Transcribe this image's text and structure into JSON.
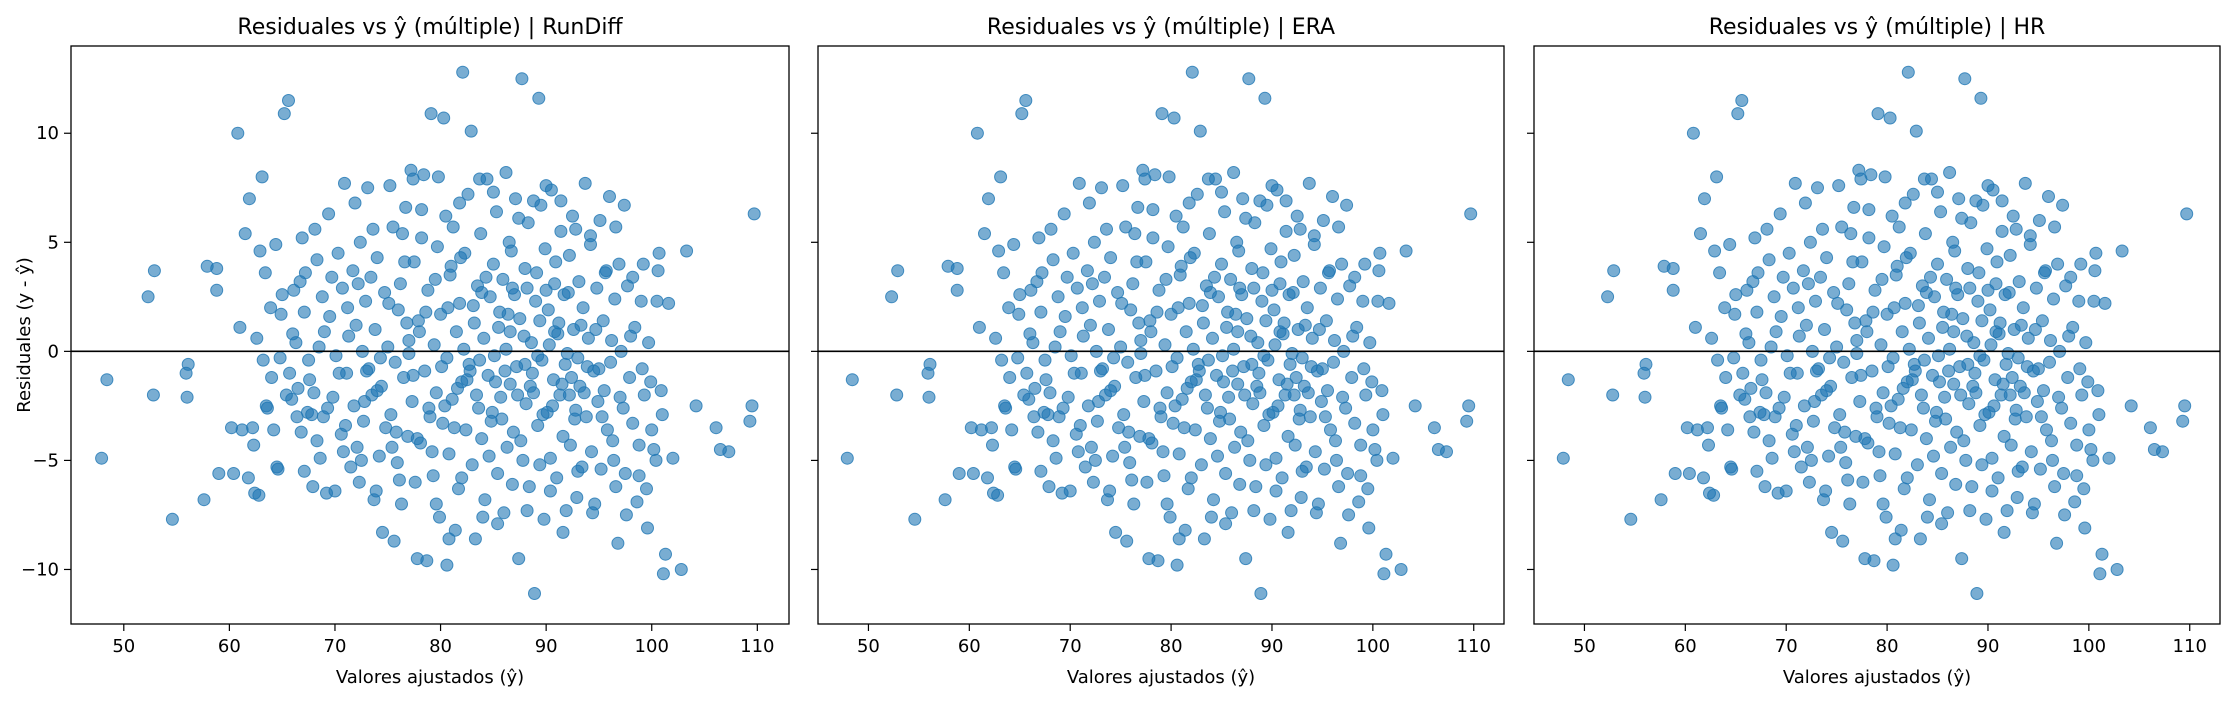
{
  "chart_data": [
    {
      "type": "scatter",
      "title": "Residuales vs ŷ (múltiple) | RunDiff",
      "xlabel": "Valores ajustados (ŷ)",
      "ylabel": "Residuales (y - ŷ)",
      "xlim": [
        45,
        113
      ],
      "ylim": [
        -12.5,
        14
      ],
      "xticks": [
        50,
        60,
        70,
        80,
        90,
        100,
        110
      ],
      "yticks": [
        -10,
        -5,
        0,
        5,
        10
      ],
      "reference_line_y": 0,
      "grid": false,
      "point_color": "#1f77b4",
      "line_color": "#000000",
      "point_alpha": 0.6,
      "show_ylabel": true,
      "show_yticklabels": true,
      "points_ref": "shared_points"
    },
    {
      "type": "scatter",
      "title": "Residuales vs ŷ (múltiple) | ERA",
      "xlabel": "Valores ajustados (ŷ)",
      "ylabel": "",
      "xlim": [
        45,
        113
      ],
      "ylim": [
        -12.5,
        14
      ],
      "xticks": [
        50,
        60,
        70,
        80,
        90,
        100,
        110
      ],
      "yticks": [
        -10,
        -5,
        0,
        5,
        10
      ],
      "reference_line_y": 0,
      "grid": false,
      "point_color": "#1f77b4",
      "line_color": "#000000",
      "point_alpha": 0.6,
      "show_ylabel": false,
      "show_yticklabels": false,
      "points_ref": "shared_points"
    },
    {
      "type": "scatter",
      "title": "Residuales vs ŷ (múltiple) | HR",
      "xlabel": "Valores ajustados (ŷ)",
      "ylabel": "",
      "xlim": [
        45,
        113
      ],
      "ylim": [
        -12.5,
        14
      ],
      "xticks": [
        50,
        60,
        70,
        80,
        90,
        100,
        110
      ],
      "yticks": [
        -10,
        -5,
        0,
        5,
        10
      ],
      "reference_line_y": 0,
      "grid": false,
      "point_color": "#1f77b4",
      "line_color": "#000000",
      "point_alpha": 0.6,
      "show_ylabel": false,
      "show_yticklabels": false,
      "points_ref": "shared_points"
    }
  ],
  "shared_points": [
    [
      47.9,
      -4.9
    ],
    [
      48.4,
      -1.3
    ],
    [
      52.3,
      2.5
    ],
    [
      52.9,
      3.7
    ],
    [
      52.8,
      -2.0
    ],
    [
      54.6,
      -7.7
    ],
    [
      55.9,
      -1.0
    ],
    [
      56.0,
      -2.1
    ],
    [
      56.1,
      -0.6
    ],
    [
      57.6,
      -6.8
    ],
    [
      57.9,
      3.9
    ],
    [
      58.8,
      3.8
    ],
    [
      58.8,
      2.8
    ],
    [
      60.4,
      -5.6
    ],
    [
      60.8,
      10.0
    ],
    [
      61.0,
      1.1
    ],
    [
      61.2,
      -3.6
    ],
    [
      61.5,
      5.4
    ],
    [
      61.8,
      -5.8
    ],
    [
      61.9,
      7.0
    ],
    [
      62.2,
      -3.5
    ],
    [
      62.3,
      -4.3
    ],
    [
      62.6,
      0.6
    ],
    [
      62.8,
      -6.6
    ],
    [
      62.9,
      4.6
    ],
    [
      63.1,
      8.0
    ],
    [
      63.4,
      3.6
    ],
    [
      63.5,
      -2.5
    ],
    [
      63.6,
      -2.6
    ],
    [
      63.9,
      2.0
    ],
    [
      64.2,
      -3.6
    ],
    [
      64.4,
      4.9
    ],
    [
      64.5,
      -5.3
    ],
    [
      64.6,
      -5.4
    ],
    [
      64.8,
      -0.3
    ],
    [
      64.9,
      1.7
    ],
    [
      65.0,
      2.6
    ],
    [
      65.2,
      10.9
    ],
    [
      65.6,
      11.5
    ],
    [
      65.7,
      -1.0
    ],
    [
      65.9,
      -2.2
    ],
    [
      66.1,
      2.8
    ],
    [
      66.3,
      0.4
    ],
    [
      66.5,
      -1.7
    ],
    [
      66.7,
      3.2
    ],
    [
      66.8,
      -3.7
    ],
    [
      66.9,
      5.2
    ],
    [
      67.1,
      -5.5
    ],
    [
      67.1,
      1.8
    ],
    [
      67.4,
      -2.8
    ],
    [
      67.6,
      -1.3
    ],
    [
      67.8,
      -2.9
    ],
    [
      67.9,
      -6.2
    ],
    [
      68.1,
      5.6
    ],
    [
      68.3,
      4.2
    ],
    [
      68.3,
      -4.1
    ],
    [
      68.6,
      -4.9
    ],
    [
      68.8,
      2.5
    ],
    [
      68.9,
      -3.0
    ],
    [
      69.0,
      0.9
    ],
    [
      69.2,
      -6.5
    ],
    [
      69.4,
      6.3
    ],
    [
      69.5,
      1.6
    ],
    [
      69.8,
      -2.1
    ],
    [
      70.0,
      -6.4
    ],
    [
      70.1,
      -0.2
    ],
    [
      70.3,
      4.5
    ],
    [
      70.6,
      -3.8
    ],
    [
      70.7,
      2.9
    ],
    [
      70.9,
      7.7
    ],
    [
      71.1,
      -1.0
    ],
    [
      71.3,
      0.7
    ],
    [
      71.5,
      -5.3
    ],
    [
      71.7,
      3.7
    ],
    [
      71.8,
      -2.5
    ],
    [
      72.0,
      1.2
    ],
    [
      72.1,
      -4.4
    ],
    [
      72.3,
      -6.0
    ],
    [
      72.4,
      5.0
    ],
    [
      72.6,
      0.0
    ],
    [
      72.7,
      -3.2
    ],
    [
      72.9,
      2.3
    ],
    [
      73.1,
      7.5
    ],
    [
      73.2,
      -0.8
    ],
    [
      73.4,
      3.4
    ],
    [
      73.5,
      -2.0
    ],
    [
      73.7,
      -6.8
    ],
    [
      73.8,
      1.0
    ],
    [
      74.0,
      4.3
    ],
    [
      74.2,
      -4.8
    ],
    [
      74.4,
      -1.6
    ],
    [
      74.5,
      -8.3
    ],
    [
      74.7,
      2.7
    ],
    [
      74.8,
      -3.5
    ],
    [
      75.0,
      0.2
    ],
    [
      75.2,
      7.6
    ],
    [
      75.3,
      -2.9
    ],
    [
      75.5,
      5.7
    ],
    [
      75.7,
      -0.5
    ],
    [
      75.9,
      -5.1
    ],
    [
      76.0,
      1.9
    ],
    [
      76.2,
      3.1
    ],
    [
      76.3,
      -7.0
    ],
    [
      76.5,
      -1.2
    ],
    [
      76.7,
      6.6
    ],
    [
      76.9,
      -3.9
    ],
    [
      77.0,
      0.5
    ],
    [
      77.2,
      8.3
    ],
    [
      77.3,
      -2.3
    ],
    [
      77.5,
      4.1
    ],
    [
      77.6,
      -6.0
    ],
    [
      77.8,
      -9.5
    ],
    [
      77.9,
      1.4
    ],
    [
      78.1,
      -4.2
    ],
    [
      78.2,
      5.2
    ],
    [
      78.4,
      8.1
    ],
    [
      78.5,
      -0.9
    ],
    [
      78.7,
      -9.6
    ],
    [
      78.8,
      2.8
    ],
    [
      79.0,
      -3.0
    ],
    [
      79.1,
      10.9
    ],
    [
      79.3,
      -5.7
    ],
    [
      79.4,
      0.3
    ],
    [
      79.6,
      -1.9
    ],
    [
      79.7,
      4.8
    ],
    [
      79.9,
      -7.6
    ],
    [
      80.0,
      1.7
    ],
    [
      80.2,
      -3.3
    ],
    [
      80.3,
      10.7
    ],
    [
      80.5,
      6.2
    ],
    [
      80.6,
      -0.3
    ],
    [
      80.8,
      -4.7
    ],
    [
      80.9,
      3.5
    ],
    [
      81.1,
      -2.2
    ],
    [
      81.2,
      5.7
    ],
    [
      81.4,
      -8.2
    ],
    [
      81.5,
      0.9
    ],
    [
      81.7,
      -6.3
    ],
    [
      81.8,
      2.2
    ],
    [
      82.0,
      -1.4
    ],
    [
      82.1,
      12.8
    ],
    [
      82.3,
      4.5
    ],
    [
      82.4,
      -3.6
    ],
    [
      82.6,
      7.2
    ],
    [
      82.7,
      -0.6
    ],
    [
      82.9,
      10.1
    ],
    [
      83.0,
      -5.2
    ],
    [
      83.2,
      1.3
    ],
    [
      83.3,
      -8.6
    ],
    [
      83.5,
      3.0
    ],
    [
      83.6,
      -2.6
    ],
    [
      83.8,
      5.4
    ],
    [
      83.9,
      -4.0
    ],
    [
      84.1,
      0.6
    ],
    [
      84.2,
      -6.8
    ],
    [
      84.4,
      7.9
    ],
    [
      84.5,
      -1.1
    ],
    [
      84.7,
      2.5
    ],
    [
      84.8,
      -3.2
    ],
    [
      85.0,
      4.0
    ],
    [
      85.1,
      -0.2
    ],
    [
      85.3,
      6.4
    ],
    [
      85.4,
      -5.6
    ],
    [
      85.6,
      1.8
    ],
    [
      85.7,
      -2.1
    ],
    [
      85.9,
      3.3
    ],
    [
      86.0,
      -7.4
    ],
    [
      86.2,
      0.1
    ],
    [
      86.3,
      -4.4
    ],
    [
      86.5,
      5.0
    ],
    [
      86.6,
      -1.5
    ],
    [
      86.8,
      2.9
    ],
    [
      86.9,
      -3.7
    ],
    [
      87.1,
      7.0
    ],
    [
      87.2,
      -0.7
    ],
    [
      87.4,
      -9.5
    ],
    [
      87.5,
      1.5
    ],
    [
      87.7,
      12.5
    ],
    [
      87.8,
      -5.0
    ],
    [
      88.0,
      3.8
    ],
    [
      88.1,
      -2.4
    ],
    [
      88.3,
      5.9
    ],
    [
      88.4,
      -6.2
    ],
    [
      88.6,
      0.4
    ],
    [
      88.7,
      -1.0
    ],
    [
      88.9,
      -11.1
    ],
    [
      89.0,
      2.3
    ],
    [
      89.2,
      -3.4
    ],
    [
      89.3,
      11.6
    ],
    [
      89.5,
      6.7
    ],
    [
      89.6,
      -0.4
    ],
    [
      89.8,
      -7.7
    ],
    [
      89.9,
      4.7
    ],
    [
      90.1,
      -2.8
    ],
    [
      90.2,
      1.9
    ],
    [
      90.4,
      -4.9
    ],
    [
      90.5,
      7.4
    ],
    [
      90.7,
      -1.3
    ],
    [
      90.8,
      3.1
    ],
    [
      91.0,
      -5.8
    ],
    [
      91.1,
      0.8
    ],
    [
      91.3,
      -2.0
    ],
    [
      91.4,
      5.5
    ],
    [
      91.6,
      -3.9
    ],
    [
      91.7,
      2.6
    ],
    [
      91.9,
      -7.3
    ],
    [
      92.0,
      -0.1
    ],
    [
      92.2,
      4.4
    ],
    [
      92.3,
      -4.3
    ],
    [
      92.5,
      6.2
    ],
    [
      92.6,
      1.0
    ],
    [
      92.8,
      -2.7
    ],
    [
      92.9,
      -6.7
    ],
    [
      93.1,
      3.2
    ],
    [
      93.2,
      -1.6
    ],
    [
      93.4,
      -5.3
    ],
    [
      93.5,
      2.0
    ],
    [
      93.7,
      7.7
    ],
    [
      93.8,
      -3.0
    ],
    [
      94.0,
      0.6
    ],
    [
      94.2,
      4.9
    ],
    [
      94.3,
      -4.6
    ],
    [
      94.5,
      -0.9
    ],
    [
      94.6,
      -7.0
    ],
    [
      94.8,
      2.9
    ],
    [
      94.9,
      -2.3
    ],
    [
      95.1,
      6.0
    ],
    [
      95.2,
      -5.4
    ],
    [
      95.4,
      1.4
    ],
    [
      95.5,
      -1.8
    ],
    [
      95.7,
      3.7
    ],
    [
      95.8,
      -3.6
    ],
    [
      96.0,
      7.1
    ],
    [
      96.1,
      -0.5
    ],
    [
      96.3,
      -4.1
    ],
    [
      96.5,
      2.4
    ],
    [
      96.6,
      -6.2
    ],
    [
      96.8,
      -8.8
    ],
    [
      96.9,
      4.0
    ],
    [
      97.1,
      0.0
    ],
    [
      97.3,
      -2.6
    ],
    [
      97.5,
      -5.6
    ],
    [
      97.7,
      3.0
    ],
    [
      97.9,
      -1.2
    ],
    [
      98.2,
      -3.3
    ],
    [
      98.4,
      1.1
    ],
    [
      98.6,
      -6.9
    ],
    [
      98.8,
      -4.3
    ],
    [
      99.0,
      2.3
    ],
    [
      99.3,
      -2.0
    ],
    [
      99.5,
      -6.3
    ],
    [
      99.7,
      0.4
    ],
    [
      99.9,
      -1.4
    ],
    [
      100.2,
      -4.5
    ],
    [
      100.5,
      2.3
    ],
    [
      100.7,
      4.5
    ],
    [
      100.9,
      -1.8
    ],
    [
      101.0,
      -2.9
    ],
    [
      101.1,
      -10.2
    ],
    [
      101.3,
      -9.3
    ],
    [
      101.6,
      2.2
    ],
    [
      102.0,
      -4.9
    ],
    [
      102.8,
      -10.0
    ],
    [
      103.3,
      4.6
    ],
    [
      104.2,
      -2.5
    ],
    [
      106.1,
      -3.5
    ],
    [
      106.5,
      -4.5
    ],
    [
      107.3,
      -4.6
    ],
    [
      109.3,
      -3.2
    ],
    [
      109.5,
      -2.5
    ],
    [
      109.7,
      6.3
    ],
    [
      66.0,
      0.8
    ],
    [
      67.2,
      3.6
    ],
    [
      68.0,
      -1.9
    ],
    [
      69.7,
      3.4
    ],
    [
      70.4,
      -1.0
    ],
    [
      71.0,
      -3.4
    ],
    [
      71.9,
      6.8
    ],
    [
      72.8,
      -2.3
    ],
    [
      73.6,
      5.6
    ],
    [
      74.3,
      -0.3
    ],
    [
      75.1,
      2.2
    ],
    [
      75.8,
      -3.7
    ],
    [
      76.6,
      4.1
    ],
    [
      77.4,
      -1.1
    ],
    [
      78.0,
      0.9
    ],
    [
      78.9,
      -2.6
    ],
    [
      79.5,
      3.3
    ],
    [
      80.1,
      -0.7
    ],
    [
      80.7,
      2.0
    ],
    [
      81.3,
      -3.5
    ],
    [
      81.9,
      4.3
    ],
    [
      82.5,
      -1.3
    ],
    [
      83.1,
      2.1
    ],
    [
      83.7,
      -0.4
    ],
    [
      84.3,
      3.4
    ],
    [
      84.9,
      -2.8
    ],
    [
      85.5,
      1.1
    ],
    [
      86.1,
      -0.9
    ],
    [
      86.7,
      4.6
    ],
    [
      87.3,
      -2.0
    ],
    [
      87.9,
      0.7
    ],
    [
      88.5,
      -1.6
    ],
    [
      89.1,
      3.6
    ],
    [
      89.7,
      -2.9
    ],
    [
      90.3,
      0.3
    ],
    [
      90.9,
      4.1
    ],
    [
      91.5,
      -1.5
    ],
    [
      92.1,
      2.7
    ],
    [
      92.7,
      -3.1
    ],
    [
      93.3,
      1.2
    ],
    [
      93.9,
      -0.7
    ],
    [
      94.7,
      1.0
    ],
    [
      95.3,
      -3.0
    ],
    [
      96.2,
      0.5
    ],
    [
      97.0,
      -2.1
    ],
    [
      98.0,
      0.7
    ],
    [
      99.1,
      -0.8
    ],
    [
      100.0,
      -3.6
    ],
    [
      83.4,
      -2.0
    ],
    [
      84.6,
      -4.8
    ],
    [
      85.8,
      -3.1
    ],
    [
      86.4,
      1.7
    ],
    [
      87.0,
      2.6
    ],
    [
      87.6,
      -4.1
    ],
    [
      88.2,
      2.9
    ],
    [
      88.8,
      -1.9
    ],
    [
      89.4,
      1.4
    ],
    [
      90.0,
      2.8
    ],
    [
      90.6,
      -2.5
    ],
    [
      91.2,
      1.3
    ],
    [
      91.8,
      -0.6
    ],
    [
      92.4,
      -1.2
    ],
    [
      93.0,
      -0.3
    ],
    [
      77.0,
      -0.1
    ],
    [
      78.6,
      1.8
    ],
    [
      79.2,
      -4.6
    ],
    [
      80.4,
      -2.5
    ],
    [
      81.0,
      3.9
    ],
    [
      81.6,
      -1.7
    ],
    [
      82.2,
      0.1
    ],
    [
      82.8,
      -0.9
    ],
    [
      83.9,
      2.7
    ],
    [
      85.2,
      -1.4
    ],
    [
      86.6,
      0.9
    ],
    [
      88.0,
      -0.6
    ],
    [
      89.2,
      -0.2
    ],
    [
      90.8,
      0.9
    ],
    [
      92.2,
      -2.0
    ],
    [
      93.6,
      -1.9
    ],
    [
      95.0,
      -0.8
    ],
    [
      73.0,
      -0.9
    ],
    [
      74.0,
      -1.8
    ],
    [
      75.4,
      -4.4
    ],
    [
      76.8,
      1.3
    ],
    [
      72.2,
      3.1
    ],
    [
      70.8,
      -4.6
    ],
    [
      69.3,
      -2.6
    ],
    [
      68.5,
      0.2
    ],
    [
      67.5,
      -0.4
    ],
    [
      66.4,
      -3.0
    ],
    [
      63.2,
      -0.4
    ],
    [
      64.0,
      -1.2
    ],
    [
      65.4,
      -2.0
    ],
    [
      71.2,
      2.0
    ],
    [
      72.5,
      -5.0
    ],
    [
      73.9,
      -6.4
    ],
    [
      75.6,
      -8.7
    ],
    [
      76.1,
      -5.9
    ],
    [
      77.8,
      -4.0
    ],
    [
      79.6,
      -7.0
    ],
    [
      80.8,
      -8.6
    ],
    [
      82.0,
      -5.8
    ],
    [
      84.0,
      -7.6
    ],
    [
      85.4,
      -7.9
    ],
    [
      86.8,
      -6.1
    ],
    [
      88.2,
      -7.3
    ],
    [
      89.4,
      -5.2
    ],
    [
      90.4,
      -6.4
    ],
    [
      91.6,
      -8.3
    ],
    [
      93.0,
      -5.5
    ],
    [
      94.4,
      -7.4
    ],
    [
      96.4,
      -5.0
    ],
    [
      97.6,
      -7.5
    ],
    [
      98.8,
      -5.7
    ],
    [
      99.6,
      -8.1
    ],
    [
      100.4,
      -5.0
    ],
    [
      60.2,
      -3.5
    ],
    [
      59.0,
      -5.6
    ],
    [
      62.4,
      -6.5
    ],
    [
      80.6,
      -9.8
    ],
    [
      83.7,
      7.9
    ],
    [
      81.8,
      6.8
    ],
    [
      79.8,
      8.0
    ],
    [
      78.2,
      6.5
    ],
    [
      77.4,
      7.9
    ],
    [
      76.4,
      5.4
    ],
    [
      85.0,
      7.3
    ],
    [
      86.2,
      8.2
    ],
    [
      87.4,
      6.1
    ],
    [
      88.8,
      6.9
    ],
    [
      90.0,
      7.6
    ],
    [
      91.4,
      6.9
    ],
    [
      92.8,
      5.6
    ],
    [
      94.2,
      5.3
    ],
    [
      96.6,
      5.7
    ],
    [
      97.4,
      6.7
    ],
    [
      99.2,
      4.0
    ],
    [
      100.6,
      3.7
    ],
    [
      98.2,
      3.4
    ],
    [
      95.6,
      3.6
    ]
  ]
}
